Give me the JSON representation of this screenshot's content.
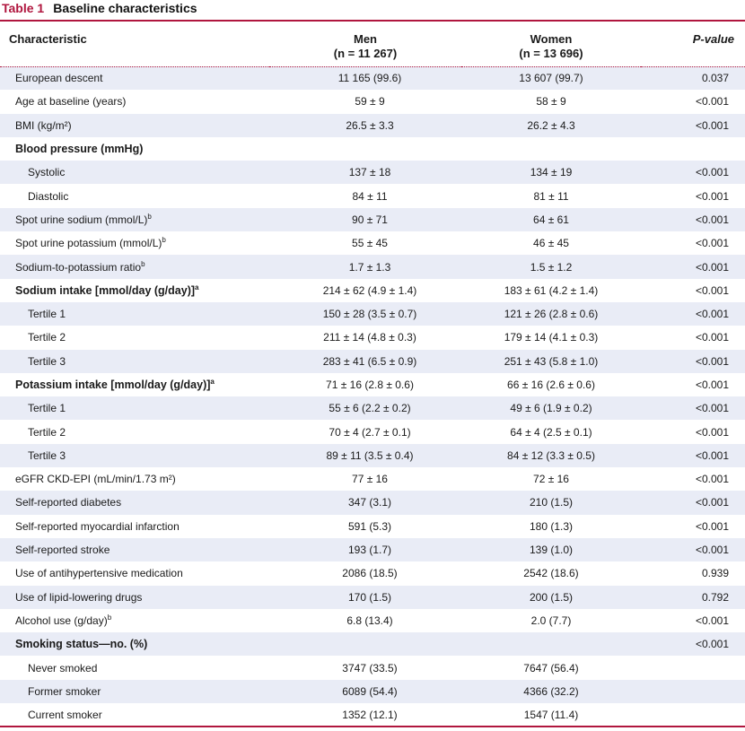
{
  "caption": {
    "number": "Table 1",
    "title": "Baseline characteristics"
  },
  "header": {
    "characteristic": "Characteristic",
    "men": "Men",
    "men_n": "(n = 11 267)",
    "women": "Women",
    "women_n": "(n = 13 696)",
    "pvalue": "P-value"
  },
  "rows": [
    {
      "label": "European descent",
      "sup": "",
      "men": "11 165 (99.6)",
      "women": "13 607 (99.7)",
      "p": "0.037",
      "bold": false,
      "sub": false
    },
    {
      "label": "Age at baseline (years)",
      "sup": "",
      "men": "59 ± 9",
      "women": "58 ± 9",
      "p": "<0.001",
      "bold": false,
      "sub": false
    },
    {
      "label": "BMI (kg/m²)",
      "sup": "",
      "men": "26.5 ± 3.3",
      "women": "26.2 ± 4.3",
      "p": "<0.001",
      "bold": false,
      "sub": false
    },
    {
      "label": "Blood pressure (mmHg)",
      "sup": "",
      "men": "",
      "women": "",
      "p": "",
      "bold": true,
      "sub": false
    },
    {
      "label": "Systolic",
      "sup": "",
      "men": "137 ± 18",
      "women": "134 ± 19",
      "p": "<0.001",
      "bold": false,
      "sub": true
    },
    {
      "label": "Diastolic",
      "sup": "",
      "men": "84 ± 11",
      "women": "81 ± 11",
      "p": "<0.001",
      "bold": false,
      "sub": true
    },
    {
      "label": "Spot urine sodium (mmol/L)",
      "sup": "b",
      "men": "90 ± 71",
      "women": "64 ± 61",
      "p": "<0.001",
      "bold": false,
      "sub": false
    },
    {
      "label": "Spot urine potassium (mmol/L)",
      "sup": "b",
      "men": "55 ± 45",
      "women": "46 ± 45",
      "p": "<0.001",
      "bold": false,
      "sub": false
    },
    {
      "label": "Sodium-to-potassium ratio",
      "sup": "b",
      "men": "1.7 ± 1.3",
      "women": "1.5 ± 1.2",
      "p": "<0.001",
      "bold": false,
      "sub": false
    },
    {
      "label": "Sodium intake [mmol/day (g/day)]",
      "sup": "a",
      "men": "214 ± 62 (4.9 ± 1.4)",
      "women": "183 ± 61 (4.2 ± 1.4)",
      "p": "<0.001",
      "bold": true,
      "sub": false
    },
    {
      "label": "Tertile 1",
      "sup": "",
      "men": "150 ± 28 (3.5 ± 0.7)",
      "women": "121 ± 26 (2.8 ± 0.6)",
      "p": "<0.001",
      "bold": false,
      "sub": true
    },
    {
      "label": "Tertile 2",
      "sup": "",
      "men": "211 ± 14 (4.8 ± 0.3)",
      "women": "179 ± 14 (4.1 ± 0.3)",
      "p": "<0.001",
      "bold": false,
      "sub": true
    },
    {
      "label": "Tertile 3",
      "sup": "",
      "men": "283 ± 41 (6.5 ± 0.9)",
      "women": "251 ± 43 (5.8 ± 1.0)",
      "p": "<0.001",
      "bold": false,
      "sub": true
    },
    {
      "label": "Potassium intake [mmol/day (g/day)]",
      "sup": "a",
      "men": "71 ± 16 (2.8 ± 0.6)",
      "women": "66 ± 16 (2.6 ± 0.6)",
      "p": "<0.001",
      "bold": true,
      "sub": false
    },
    {
      "label": "Tertile 1",
      "sup": "",
      "men": "55 ± 6 (2.2 ± 0.2)",
      "women": "49 ± 6 (1.9 ± 0.2)",
      "p": "<0.001",
      "bold": false,
      "sub": true
    },
    {
      "label": "Tertile 2",
      "sup": "",
      "men": "70 ± 4 (2.7 ± 0.1)",
      "women": "64 ± 4 (2.5 ± 0.1)",
      "p": "<0.001",
      "bold": false,
      "sub": true
    },
    {
      "label": "Tertile 3",
      "sup": "",
      "men": "89 ± 11 (3.5 ± 0.4)",
      "women": "84 ± 12 (3.3 ± 0.5)",
      "p": "<0.001",
      "bold": false,
      "sub": true
    },
    {
      "label": "eGFR CKD-EPI (mL/min/1.73 m²)",
      "sup": "",
      "men": "77 ± 16",
      "women": "72 ± 16",
      "p": "<0.001",
      "bold": false,
      "sub": false
    },
    {
      "label": "Self-reported diabetes",
      "sup": "",
      "men": "347 (3.1)",
      "women": "210 (1.5)",
      "p": "<0.001",
      "bold": false,
      "sub": false
    },
    {
      "label": "Self-reported myocardial infarction",
      "sup": "",
      "men": "591 (5.3)",
      "women": "180 (1.3)",
      "p": "<0.001",
      "bold": false,
      "sub": false
    },
    {
      "label": "Self-reported stroke",
      "sup": "",
      "men": "193 (1.7)",
      "women": "139 (1.0)",
      "p": "<0.001",
      "bold": false,
      "sub": false
    },
    {
      "label": "Use of antihypertensive medication",
      "sup": "",
      "men": "2086 (18.5)",
      "women": "2542 (18.6)",
      "p": "0.939",
      "bold": false,
      "sub": false
    },
    {
      "label": "Use of lipid-lowering drugs",
      "sup": "",
      "men": "170 (1.5)",
      "women": "200 (1.5)",
      "p": "0.792",
      "bold": false,
      "sub": false
    },
    {
      "label": "Alcohol use (g/day)",
      "sup": "b",
      "men": "6.8 (13.4)",
      "women": "2.0 (7.7)",
      "p": "<0.001",
      "bold": false,
      "sub": false
    },
    {
      "label": "Smoking status—no. (%)",
      "sup": "",
      "men": "",
      "women": "",
      "p": "<0.001",
      "bold": true,
      "sub": false
    },
    {
      "label": "Never smoked",
      "sup": "",
      "men": "3747 (33.5)",
      "women": "7647 (56.4)",
      "p": "",
      "bold": false,
      "sub": true
    },
    {
      "label": "Former smoker",
      "sup": "",
      "men": "6089 (54.4)",
      "women": "4366 (32.2)",
      "p": "",
      "bold": false,
      "sub": true
    },
    {
      "label": "Current smoker",
      "sup": "",
      "men": "1352 (12.1)",
      "women": "1547 (11.4)",
      "p": "",
      "bold": false,
      "sub": true
    }
  ]
}
